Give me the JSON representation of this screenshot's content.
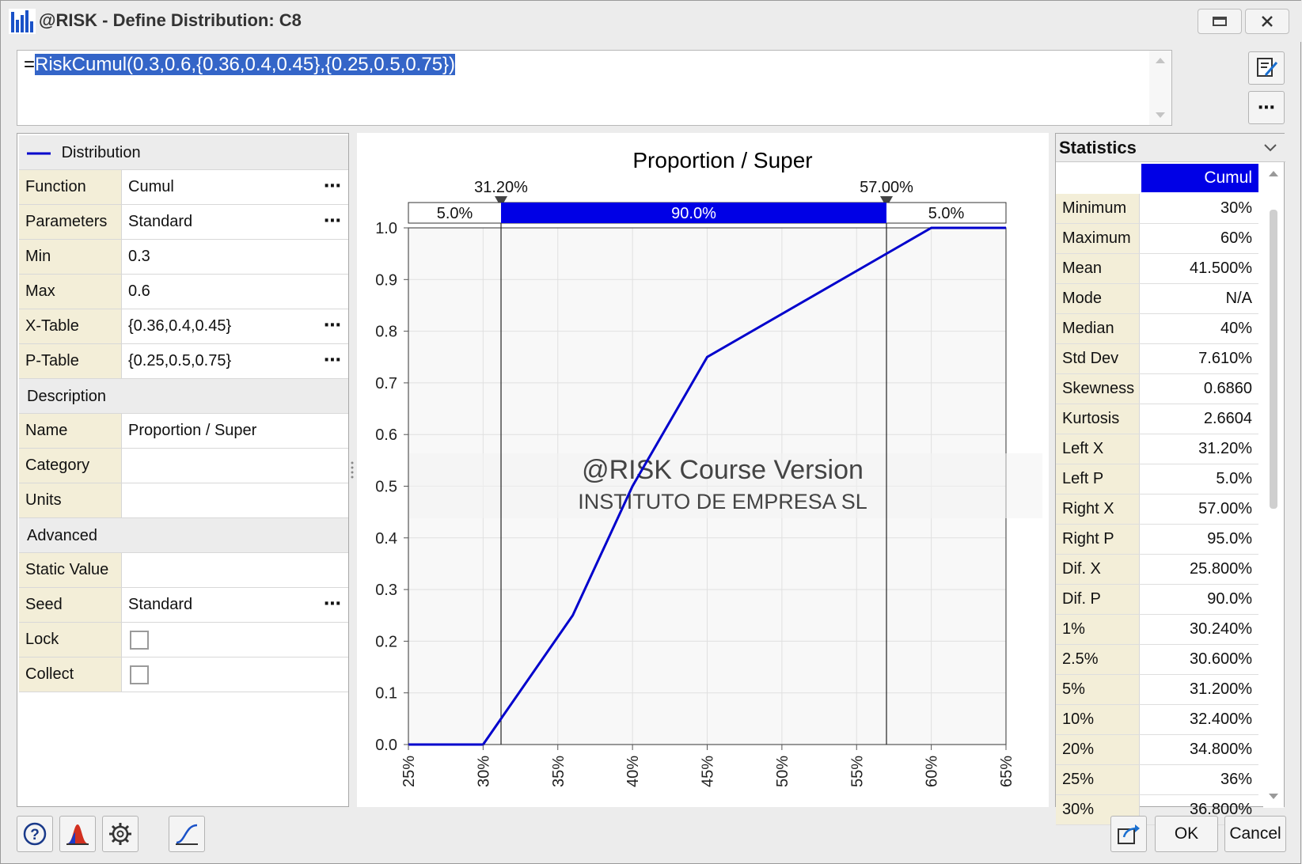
{
  "window": {
    "title": "@RISK - Define Distribution: C8",
    "icon": "risk-chart-icon",
    "buttons": [
      "restore-icon",
      "close-icon"
    ]
  },
  "formula": {
    "equals": "=",
    "selected": "RiskCumul(0.3,0.6,{0.36,0.4,0.45},{0.25,0.5,0.75})",
    "side_buttons": [
      "edit-icon",
      "more-icon"
    ]
  },
  "distribution_panel": {
    "header_label": "Distribution",
    "rows": [
      {
        "key": "Function",
        "value": "Cumul",
        "more": "⋯"
      },
      {
        "key": "Parameters",
        "value": "Standard",
        "more": "⋯"
      },
      {
        "key": "Min",
        "value": "0.3",
        "more": ""
      },
      {
        "key": "Max",
        "value": "0.6",
        "more": ""
      },
      {
        "key": "X-Table",
        "value": "{0.36,0.4,0.45}",
        "more": "⋯"
      },
      {
        "key": "P-Table",
        "value": "{0.25,0.5,0.75}",
        "more": "⋯"
      }
    ],
    "description_section": "Description",
    "description_rows": [
      {
        "key": "Name",
        "value": "Proportion / Super"
      },
      {
        "key": "Category",
        "value": ""
      },
      {
        "key": "Units",
        "value": ""
      }
    ],
    "advanced_section": "Advanced",
    "advanced_rows": [
      {
        "key": "Static Value",
        "value": ""
      },
      {
        "key": "Seed",
        "value": "Standard",
        "more": "⋯"
      },
      {
        "key": "Lock",
        "checked": false
      },
      {
        "key": "Collect",
        "checked": false
      }
    ]
  },
  "chart_data": {
    "type": "line",
    "title": "Proportion / Super",
    "series": [
      {
        "x": [
          0.25,
          0.3,
          0.36,
          0.4,
          0.45,
          0.6,
          0.65
        ],
        "y": [
          0,
          0,
          0.25,
          0.5,
          0.75,
          1.0,
          1.0
        ],
        "color": "#0000cc"
      }
    ],
    "xlim": [
      0.25,
      0.65
    ],
    "ylim": [
      0,
      1.0
    ],
    "x_ticks": [
      "25%",
      "30%",
      "35%",
      "40%",
      "45%",
      "50%",
      "55%",
      "60%",
      "65%"
    ],
    "x_tick_values": [
      0.25,
      0.3,
      0.35,
      0.4,
      0.45,
      0.5,
      0.55,
      0.6,
      0.65
    ],
    "y_ticks": [
      "0.0",
      "0.1",
      "0.2",
      "0.3",
      "0.4",
      "0.5",
      "0.6",
      "0.7",
      "0.8",
      "0.9",
      "1.0"
    ],
    "y_tick_values": [
      0,
      0.1,
      0.2,
      0.3,
      0.4,
      0.5,
      0.6,
      0.7,
      0.8,
      0.9,
      1.0
    ],
    "delimiters": [
      {
        "x": 0.312,
        "label": "31.20%"
      },
      {
        "x": 0.57,
        "label": "57.00%"
      }
    ],
    "band": {
      "left": "5.0%",
      "middle": "90.0%",
      "right": "5.0%",
      "color": "#0000e6"
    },
    "grid": true,
    "watermark": {
      "line1": "@RISK Course Version",
      "line2": "INSTITUTO DE EMPRESA SL"
    }
  },
  "statistics": {
    "title": "Statistics",
    "column": "Cumul",
    "rows": [
      {
        "key": "Minimum",
        "value": "30%"
      },
      {
        "key": "Maximum",
        "value": "60%"
      },
      {
        "key": "Mean",
        "value": "41.500%"
      },
      {
        "key": "Mode",
        "value": "N/A"
      },
      {
        "key": "Median",
        "value": "40%"
      },
      {
        "key": "Std Dev",
        "value": "7.610%"
      },
      {
        "key": "Skewness",
        "value": "0.6860"
      },
      {
        "key": "Kurtosis",
        "value": "2.6604"
      },
      {
        "key": "Left X",
        "value": "31.20%"
      },
      {
        "key": "Left P",
        "value": "5.0%"
      },
      {
        "key": "Right X",
        "value": "57.00%"
      },
      {
        "key": "Right P",
        "value": "95.0%"
      },
      {
        "key": "Dif. X",
        "value": "25.800%"
      },
      {
        "key": "Dif. P",
        "value": "90.0%"
      },
      {
        "key": "1%",
        "value": "30.240%"
      },
      {
        "key": "2.5%",
        "value": "30.600%"
      },
      {
        "key": "5%",
        "value": "31.200%"
      },
      {
        "key": "10%",
        "value": "32.400%"
      },
      {
        "key": "20%",
        "value": "34.800%"
      },
      {
        "key": "25%",
        "value": "36%"
      },
      {
        "key": "30%",
        "value": "36.800%"
      }
    ]
  },
  "footer": {
    "icon_buttons": [
      "help-icon",
      "distribution-icon",
      "settings-gear-icon",
      "cumulative-curve-icon"
    ],
    "export_icon": "export-icon",
    "ok_label": "OK",
    "cancel_label": "Cancel"
  }
}
